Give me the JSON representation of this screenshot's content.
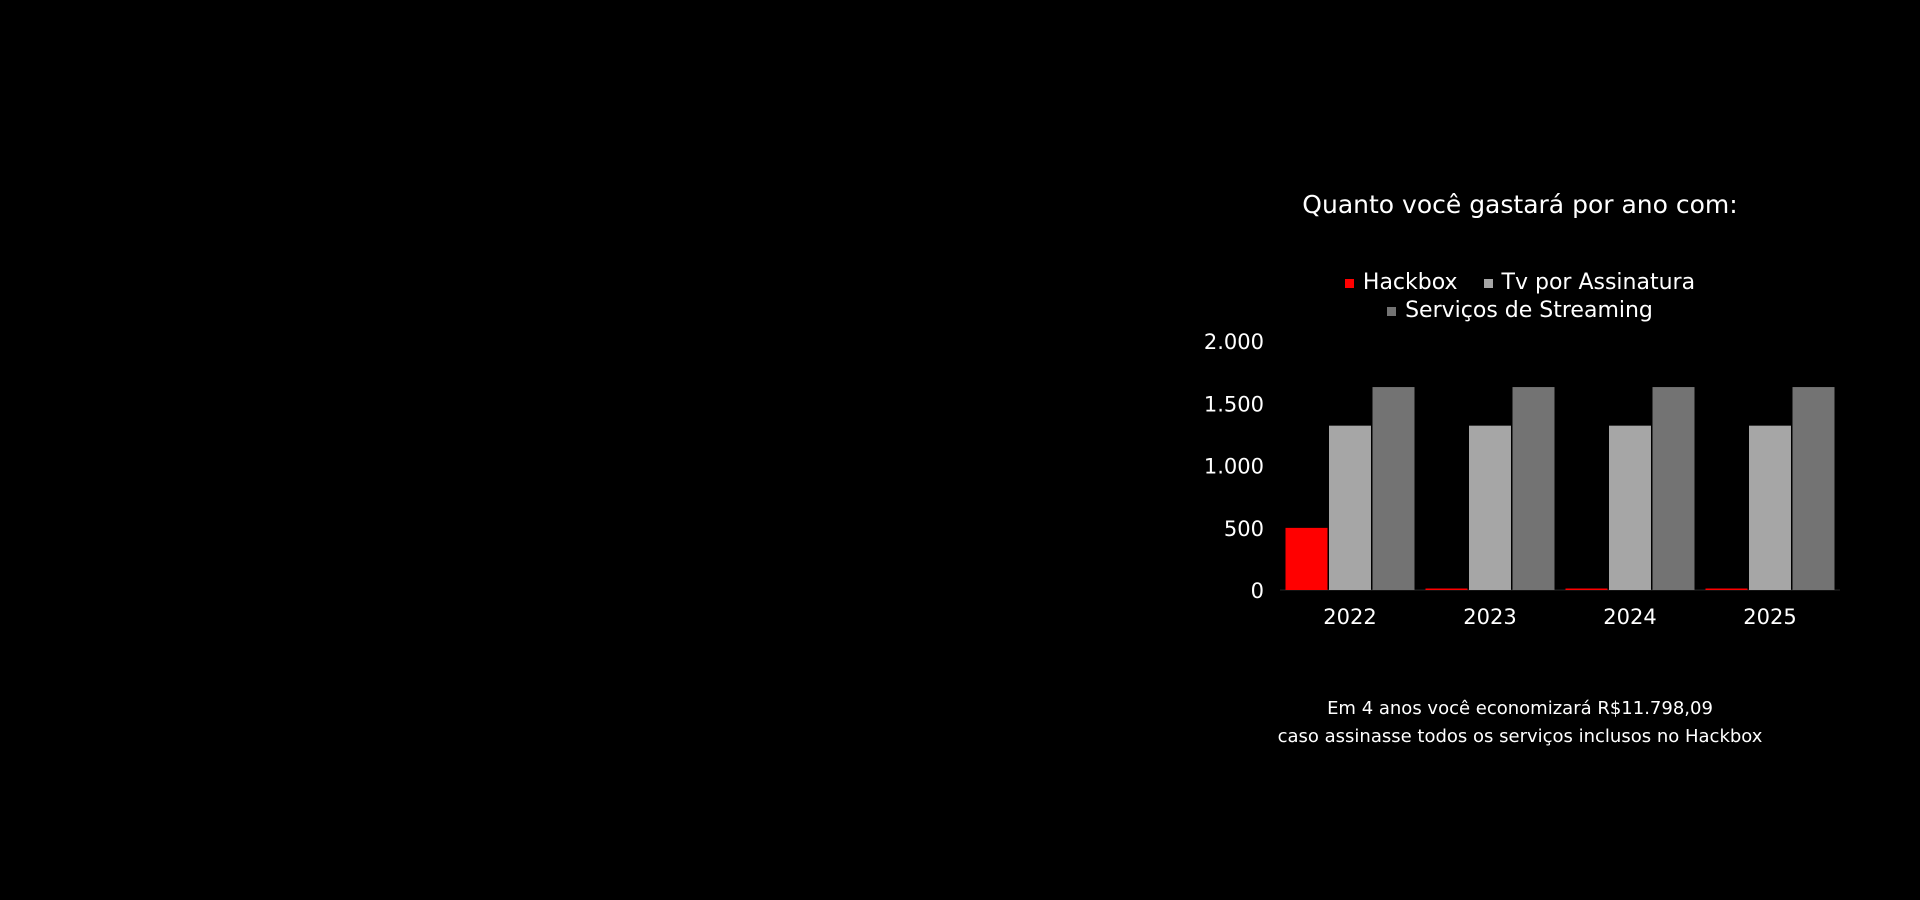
{
  "chart_data": {
    "type": "bar",
    "title": "Quanto você gastará por ano com:",
    "categories": [
      "2022",
      "2023",
      "2024",
      "2025"
    ],
    "series": [
      {
        "name": "Hackbox",
        "color": "#ff0000",
        "values": [
          499,
          12,
          12,
          12
        ]
      },
      {
        "name": "Tv por Assinatura",
        "color": "#a6a6a6",
        "values": [
          1320,
          1320,
          1320,
          1320
        ]
      },
      {
        "name": "Serviços de Streaming",
        "color": "#737373",
        "values": [
          1630,
          1630,
          1630,
          1630
        ]
      }
    ],
    "ylim": [
      0,
      2000
    ],
    "yticks": [
      0,
      500,
      1000,
      1500,
      2000
    ],
    "ytick_labels": [
      "0",
      "500",
      "1.000",
      "1.500",
      "2.000"
    ],
    "xlabel": "",
    "ylabel": "",
    "grid": false,
    "legend_position": "top"
  },
  "footnote": {
    "line1": "Em 4 anos você economizará R$11.798,09",
    "line2": "caso assinasse todos os serviços inclusos no Hackbox"
  }
}
